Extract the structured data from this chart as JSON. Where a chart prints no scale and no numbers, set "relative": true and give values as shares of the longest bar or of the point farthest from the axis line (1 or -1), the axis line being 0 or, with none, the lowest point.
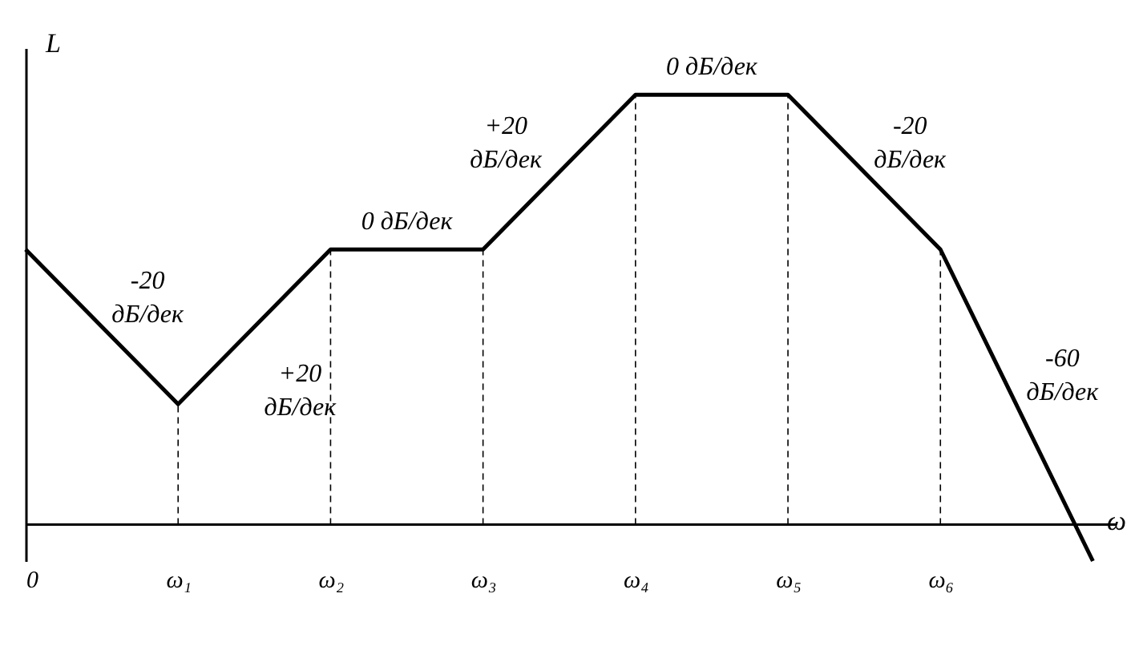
{
  "chart_data": {
    "type": "line",
    "relative": true,
    "xlabel": "ω",
    "ylabel": "L",
    "color": "#000000",
    "categories": [
      "0",
      "ω₁",
      "ω₂",
      "ω₃",
      "ω₄",
      "ω₅",
      "ω₆",
      null
    ],
    "values": [
      0.64,
      0.28,
      0.64,
      0.64,
      1,
      1,
      0.64,
      -0.085
    ],
    "line_style": "solid",
    "ref_lines": [
      {
        "axis": "x",
        "value": "ω₁",
        "line_style": "dashed"
      },
      {
        "axis": "x",
        "value": "ω₂",
        "line_style": "dashed"
      },
      {
        "axis": "x",
        "value": "ω₃",
        "line_style": "dashed"
      },
      {
        "axis": "x",
        "value": "ω₄",
        "line_style": "dashed"
      },
      {
        "axis": "x",
        "value": "ω₅",
        "line_style": "dashed"
      },
      {
        "axis": "x",
        "value": "ω₆",
        "line_style": "dashed"
      }
    ],
    "annotations": [
      "-20\nдБ/дек",
      "+20\nдБ/дек",
      "0 дБ/дек",
      "+20\nдБ/дек",
      "0 дБ/дек",
      "-20\nдБ/дек",
      "-60\nдБ/дек"
    ]
  }
}
